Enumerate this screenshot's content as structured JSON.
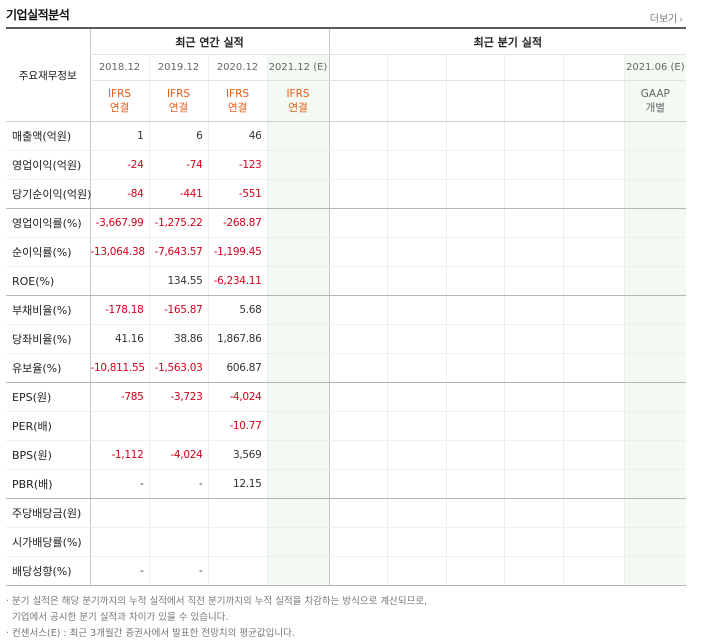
{
  "title": "기업실적분석",
  "more_label": "더보기",
  "more_icon": "chevron-right-icon",
  "header": {
    "row_label": "주요재무정보",
    "annual_group": "최근 연간 실적",
    "quarter_group": "최근 분기 실적",
    "annual_periods": [
      "2018.12",
      "2019.12",
      "2020.12",
      "2021.12 (E)"
    ],
    "quarter_periods": [
      "",
      "",
      "",
      "",
      "",
      "2021.06 (E)"
    ],
    "annual_std": [
      [
        "IFRS",
        "연결"
      ],
      [
        "IFRS",
        "연결"
      ],
      [
        "IFRS",
        "연결"
      ],
      [
        "IFRS",
        "연결"
      ]
    ],
    "quarter_std": [
      [
        "",
        ""
      ],
      [
        "",
        ""
      ],
      [
        "",
        ""
      ],
      [
        "",
        ""
      ],
      [
        "",
        ""
      ],
      [
        "GAAP",
        "개별"
      ]
    ]
  },
  "rows": [
    {
      "label": "매출액(억원)",
      "values": [
        "1",
        "6",
        "46",
        ""
      ]
    },
    {
      "label": "영업이익(억원)",
      "values": [
        "-24",
        "-74",
        "-123",
        ""
      ]
    },
    {
      "label": "당기순이익(억원)",
      "values": [
        "-84",
        "-441",
        "-551",
        ""
      ],
      "group_end": true
    },
    {
      "label": "영업이익률(%)",
      "values": [
        "-3,667.99",
        "-1,275.22",
        "-268.87",
        ""
      ]
    },
    {
      "label": "순이익률(%)",
      "values": [
        "-13,064.38",
        "-7,643.57",
        "-1,199.45",
        ""
      ]
    },
    {
      "label": "ROE(%)",
      "values": [
        "",
        "134.55",
        "-6,234.11",
        ""
      ],
      "group_end": true
    },
    {
      "label": "부채비율(%)",
      "values": [
        "-178.18",
        "-165.87",
        "5.68",
        ""
      ]
    },
    {
      "label": "당좌비율(%)",
      "values": [
        "41.16",
        "38.86",
        "1,867.86",
        ""
      ]
    },
    {
      "label": "유보율(%)",
      "values": [
        "-10,811.55",
        "-1,563.03",
        "606.87",
        ""
      ],
      "group_end": true
    },
    {
      "label": "EPS(원)",
      "values": [
        "-785",
        "-3,723",
        "-4,024",
        ""
      ]
    },
    {
      "label": "PER(배)",
      "values": [
        "",
        "",
        "-10.77",
        ""
      ]
    },
    {
      "label": "BPS(원)",
      "values": [
        "-1,112",
        "-4,024",
        "3,569",
        ""
      ]
    },
    {
      "label": "PBR(배)",
      "values": [
        "-",
        "-",
        "12.15",
        ""
      ],
      "group_end": true
    },
    {
      "label": "주당배당금(원)",
      "values": [
        "",
        "",
        "",
        ""
      ]
    },
    {
      "label": "시가배당률(%)",
      "values": [
        "",
        "",
        "",
        ""
      ]
    },
    {
      "label": "배당성향(%)",
      "values": [
        "-",
        "-",
        "",
        ""
      ],
      "group_end": true
    }
  ],
  "notes": [
    "· 분기 실적은 해당 분기까지의 누적 실적에서 직전 분기까지의 누적 실적을 차감하는 방식으로 계산되므로,",
    "  기업에서 공시한 분기 실적과 차이가 있을 수 있습니다.",
    "· 컨센서스(E) : 최근 3개월간 증권사에서 발표한 전망치의 평균값입니다."
  ],
  "colors": {
    "negative": "#d0021b",
    "ifrs": "#e85b17",
    "estimate_bg": "#f3f9f3"
  }
}
